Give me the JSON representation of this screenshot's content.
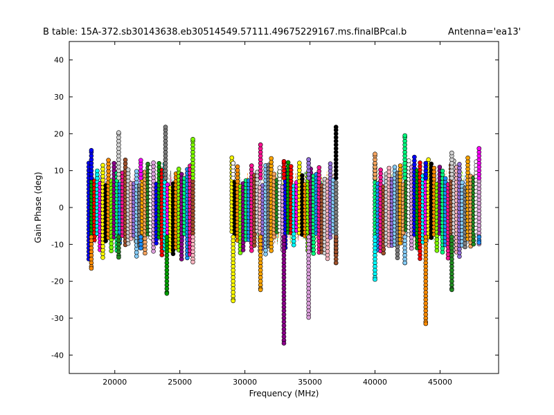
{
  "chart_data": {
    "type": "scatter",
    "title": "B table: 15A-372.sb30143638.eb30514549.57111.49675229167.ms.finalBPcal.b",
    "antenna_label": "Antenna='ea13'",
    "xlabel": "Frequency (MHz)",
    "ylabel": "Gain Phase (deg)",
    "xlim": [
      16500,
      49500
    ],
    "ylim": [
      -45,
      45
    ],
    "xticks": [
      20000,
      25000,
      30000,
      35000,
      40000,
      45000
    ],
    "yticks": [
      -40,
      -30,
      -20,
      -10,
      0,
      10,
      20,
      30,
      40
    ],
    "grid": false,
    "legend": "none",
    "band_ranges": [
      [
        18000,
        26000
      ],
      [
        29000,
        37000
      ],
      [
        40000,
        48000
      ]
    ],
    "typical_phase_range": [
      -10,
      10
    ],
    "colors": [
      "#0000ff",
      "#00a000",
      "#ff0000",
      "#00ffff",
      "#ff00ff",
      "#ffff00",
      "#000000",
      "#ff8c00",
      "#7fff00",
      "#8b008b",
      "#00ff7f",
      "#1e90ff",
      "#ff1493",
      "#a0522d",
      "#d3d3d3",
      "#ffb6c1",
      "#9370db",
      "#87cefa",
      "#808080",
      "#ffa500",
      "#f4a460",
      "#228b22",
      "#ffffff",
      "#dda0dd"
    ],
    "extreme_points": [
      {
        "x": 18200,
        "y": 15.5
      },
      {
        "x": 18200,
        "y": -16.5
      },
      {
        "x": 20300,
        "y": 20.3
      },
      {
        "x": 20300,
        "y": -13.5
      },
      {
        "x": 22000,
        "y": 12.8
      },
      {
        "x": 22000,
        "y": -11.0
      },
      {
        "x": 23900,
        "y": 21.8
      },
      {
        "x": 24000,
        "y": -23.3
      },
      {
        "x": 26000,
        "y": 18.5
      },
      {
        "x": 26000,
        "y": -14.8
      },
      {
        "x": 29100,
        "y": 12.0
      },
      {
        "x": 29100,
        "y": -25.3
      },
      {
        "x": 31200,
        "y": 17.0
      },
      {
        "x": 31200,
        "y": -22.3
      },
      {
        "x": 33000,
        "y": 12.5
      },
      {
        "x": 33000,
        "y": -36.8
      },
      {
        "x": 34900,
        "y": 13.0
      },
      {
        "x": 34900,
        "y": -29.8
      },
      {
        "x": 37000,
        "y": 21.8
      },
      {
        "x": 37000,
        "y": -15.0
      },
      {
        "x": 40000,
        "y": 14.5
      },
      {
        "x": 40000,
        "y": -19.5
      },
      {
        "x": 42300,
        "y": 19.5
      },
      {
        "x": 42300,
        "y": -15.0
      },
      {
        "x": 43900,
        "y": 12.0
      },
      {
        "x": 43900,
        "y": -31.5
      },
      {
        "x": 45900,
        "y": 14.8
      },
      {
        "x": 45900,
        "y": -22.3
      },
      {
        "x": 48000,
        "y": 16.0
      },
      {
        "x": 48000,
        "y": -9.5
      }
    ]
  }
}
